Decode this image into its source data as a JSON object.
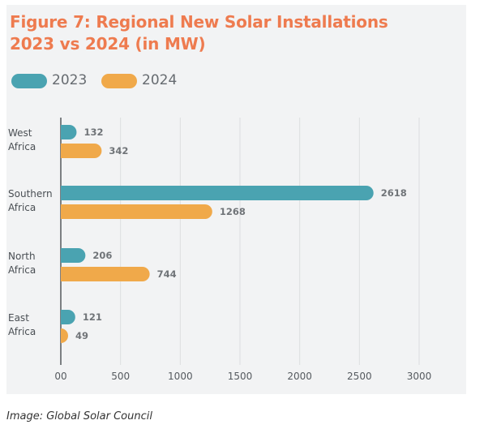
{
  "chart_data": {
    "type": "bar",
    "orientation": "horizontal",
    "title_lines": [
      "Figure 7: Regional New Solar Installations",
      "2023 vs 2024 (in MW)"
    ],
    "categories": [
      [
        "West",
        "Africa"
      ],
      [
        "Southern",
        "Africa"
      ],
      [
        "North",
        "Africa"
      ],
      [
        "East",
        "Africa"
      ]
    ],
    "series": [
      {
        "name": "2023",
        "color": "#4aa3b1",
        "values": [
          132,
          2618,
          206,
          121
        ]
      },
      {
        "name": "2024",
        "color": "#f0a94a",
        "values": [
          342,
          1268,
          744,
          49
        ]
      }
    ],
    "xlim": [
      0,
      3000
    ],
    "xticks": [
      0,
      500,
      1000,
      1500,
      2000,
      2500,
      3000
    ],
    "xtick_labels": [
      "00",
      "500",
      "1000",
      "1500",
      "2000",
      "2500",
      "3000"
    ],
    "grid": true,
    "legend_position": "top-left",
    "data_labels": true
  },
  "credit": "Image: Global Solar Council",
  "colors": {
    "title": "#ee7b4f",
    "panel": "#f2f3f4",
    "grid": "#dcdee0"
  }
}
